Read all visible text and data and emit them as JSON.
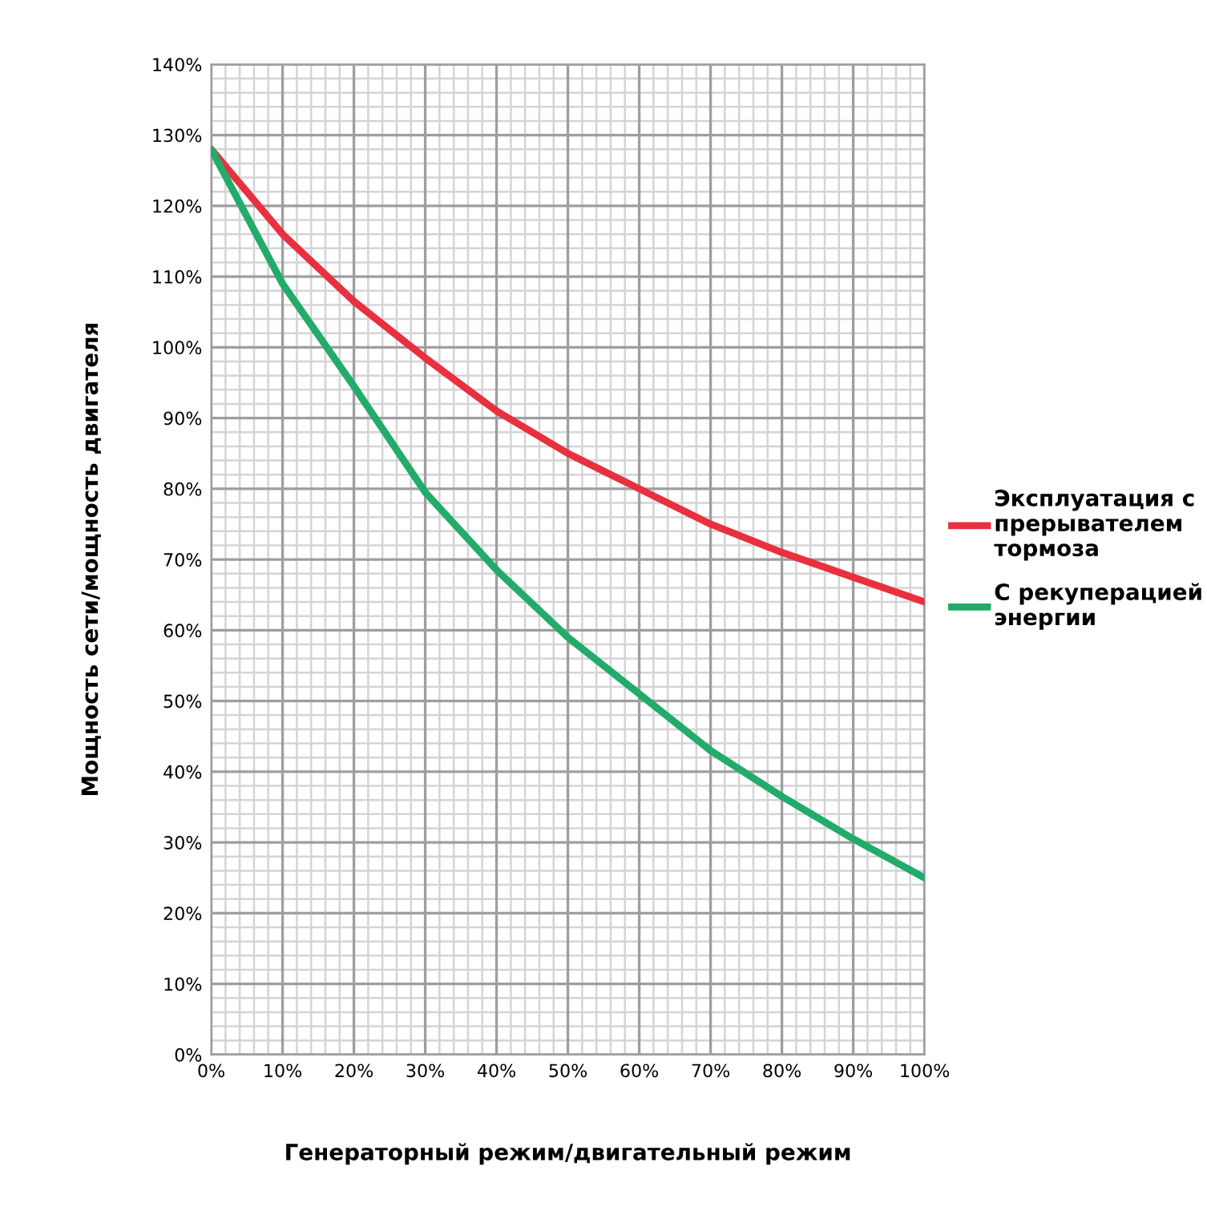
{
  "chart_data": {
    "type": "line",
    "xlabel": "Генераторный режим/двигательный режим",
    "ylabel": "Мощность сети/мощность двигателя",
    "x": [
      0,
      10,
      20,
      30,
      40,
      50,
      60,
      70,
      80,
      90,
      100
    ],
    "series": [
      {
        "name": "Эксплуатация с\nпрерывателем\nтормоза",
        "color": "#e8303f",
        "values": [
          128,
          116,
          106.5,
          98.5,
          91,
          85,
          80,
          75,
          71,
          67.5,
          64
        ]
      },
      {
        "name": "С рекуперацией\nэнергии",
        "color": "#22ab6a",
        "values": [
          128,
          109,
          94.5,
          79.5,
          68.5,
          59,
          51,
          43,
          36.5,
          30.5,
          25
        ]
      }
    ],
    "xlim": [
      0,
      100
    ],
    "xticks": [
      {
        "value": 0,
        "label": "0%"
      },
      {
        "value": 10,
        "label": "10%"
      },
      {
        "value": 20,
        "label": "20%"
      },
      {
        "value": 30,
        "label": "30%"
      },
      {
        "value": 40,
        "label": "40%"
      },
      {
        "value": 50,
        "label": "50%"
      },
      {
        "value": 60,
        "label": "60%"
      },
      {
        "value": 70,
        "label": "70%"
      },
      {
        "value": 80,
        "label": "80%"
      },
      {
        "value": 90,
        "label": "90%"
      },
      {
        "value": 100,
        "label": "100%"
      }
    ],
    "ylim": [
      0,
      140
    ],
    "yticks": [
      {
        "value": 0,
        "label": "0%"
      },
      {
        "value": 10,
        "label": "10%"
      },
      {
        "value": 20,
        "label": "20%"
      },
      {
        "value": 30,
        "label": "30%"
      },
      {
        "value": 40,
        "label": "40%"
      },
      {
        "value": 50,
        "label": "50%"
      },
      {
        "value": 60,
        "label": "60%"
      },
      {
        "value": 70,
        "label": "70%"
      },
      {
        "value": 80,
        "label": "80%"
      },
      {
        "value": 90,
        "label": "90%"
      },
      {
        "value": 100,
        "label": "100%"
      },
      {
        "value": 110,
        "label": "110%"
      },
      {
        "value": 120,
        "label": "120%"
      },
      {
        "value": 130,
        "label": "130%"
      },
      {
        "value": 140,
        "label": "140%"
      }
    ],
    "grid": true,
    "legend": "right",
    "marker": "none",
    "line_style": "solid"
  }
}
